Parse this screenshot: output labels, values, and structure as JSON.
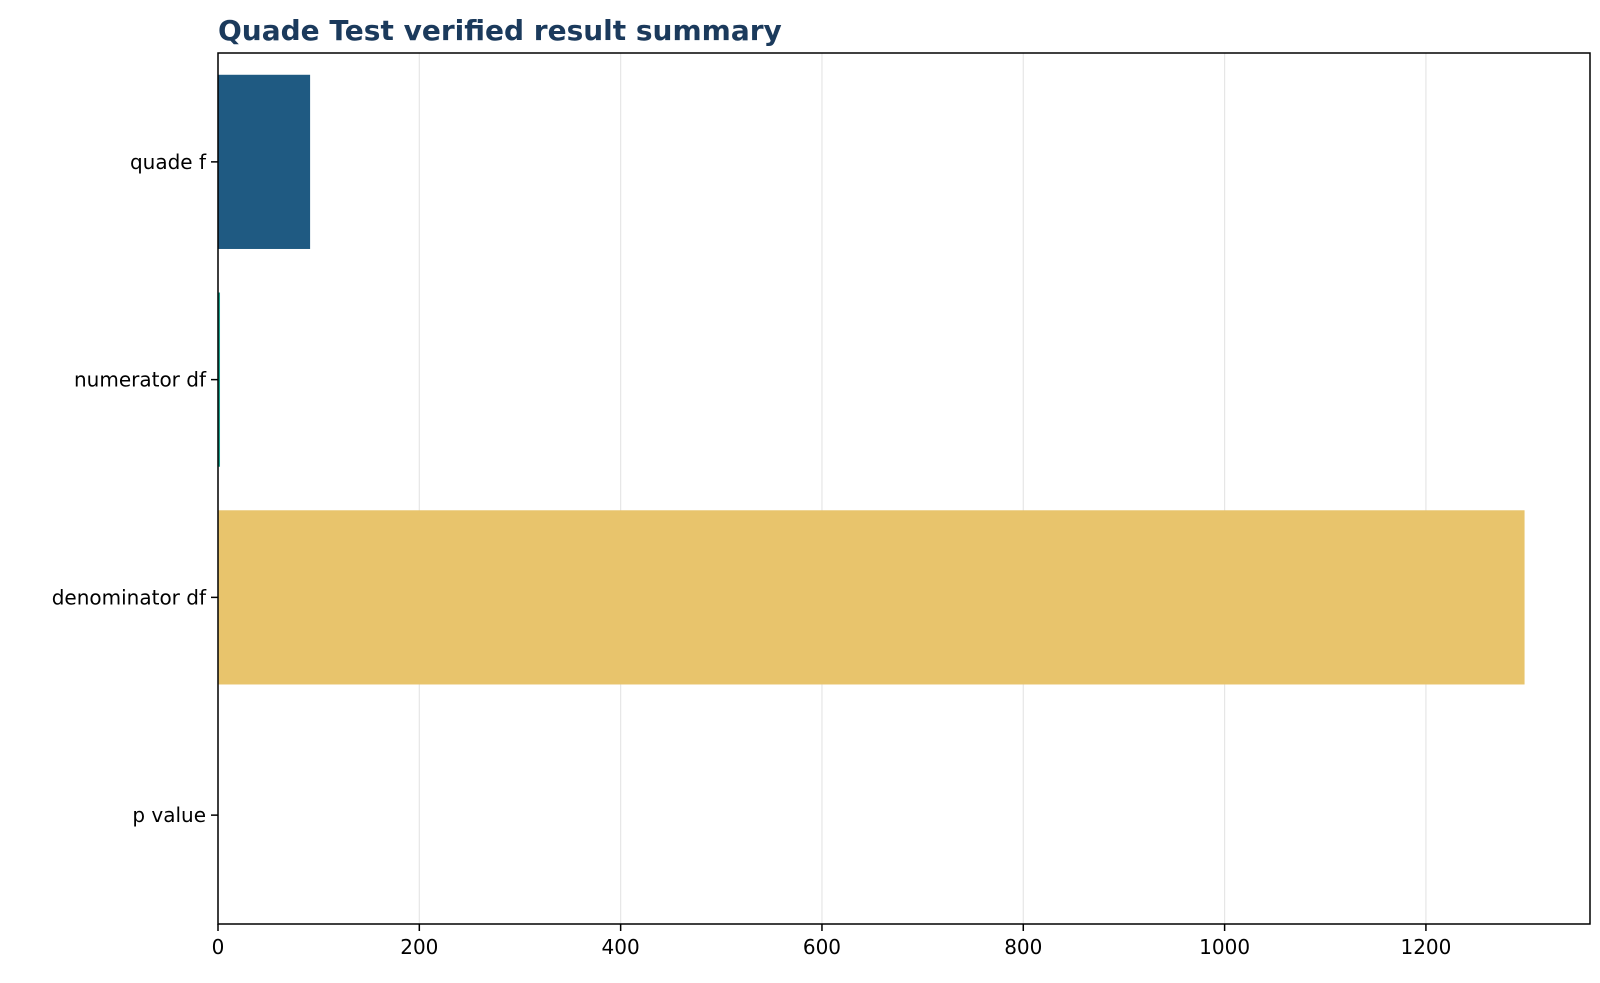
{
  "chart_data": {
    "type": "bar",
    "orientation": "horizontal",
    "title": "Quade Test verified result summary",
    "xlabel": "",
    "ylabel": "",
    "categories": [
      "quade f",
      "numerator df",
      "denominator df",
      "p value"
    ],
    "values": [
      91.5,
      2,
      1298,
      0
    ],
    "bar_colors": [
      "#1f5a82",
      "#1a9e8a",
      "#e8c46c",
      "#b0b0b0"
    ],
    "xlim": [
      0,
      1363
    ],
    "xticks": [
      0,
      200,
      400,
      600,
      800,
      1000,
      1200
    ],
    "grid": "x",
    "legend": "none"
  },
  "colors": {
    "title": "#1b3a5c",
    "axis": "#000000",
    "grid": "#e6e6e6"
  }
}
